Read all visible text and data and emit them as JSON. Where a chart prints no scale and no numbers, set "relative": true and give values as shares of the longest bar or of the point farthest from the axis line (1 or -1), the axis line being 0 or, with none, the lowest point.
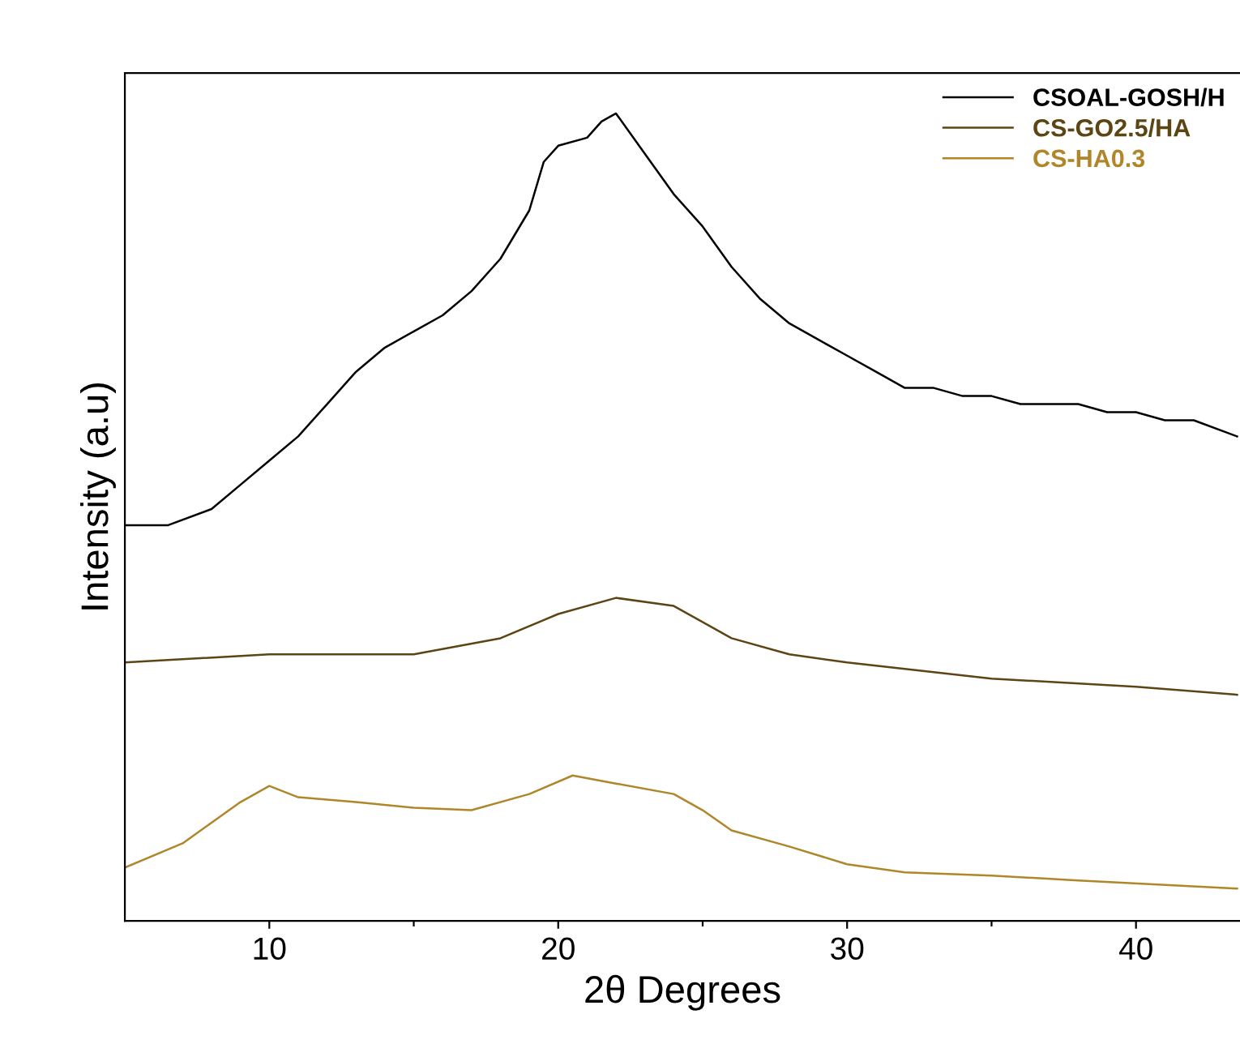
{
  "chart_data": {
    "type": "line",
    "relative": true,
    "xlabel": "2θ Degrees",
    "ylabel": "Intensity (a.u)",
    "xlim": [
      5,
      43.6
    ],
    "xticks": [
      {
        "value": 10,
        "label": "10"
      },
      {
        "value": 15,
        "label": null
      },
      {
        "value": 20,
        "label": "20"
      },
      {
        "value": 25,
        "label": null
      },
      {
        "value": 30,
        "label": "30"
      },
      {
        "value": 35,
        "label": null
      },
      {
        "value": 40,
        "label": "40"
      }
    ],
    "legend": "top right",
    "grid": false,
    "marker": "none",
    "line_style": "solid",
    "series": [
      {
        "name": "CSOAL-GOSH/H",
        "color": "#000000",
        "x": [
          5,
          6.5,
          8,
          9,
          10,
          11,
          12,
          13,
          14,
          15,
          16,
          17,
          18,
          19,
          19.5,
          20,
          21,
          21.5,
          22,
          23,
          24,
          25,
          26,
          27,
          28,
          29,
          30,
          31,
          32,
          33,
          34,
          35,
          36,
          37,
          38,
          39,
          40,
          41,
          42,
          43.5
        ],
        "values": [
          0.49,
          0.49,
          0.51,
          0.54,
          0.57,
          0.6,
          0.64,
          0.68,
          0.71,
          0.73,
          0.75,
          0.78,
          0.82,
          0.88,
          0.94,
          0.96,
          0.97,
          0.99,
          1.0,
          0.95,
          0.9,
          0.86,
          0.81,
          0.77,
          0.74,
          0.72,
          0.7,
          0.68,
          0.66,
          0.66,
          0.65,
          0.65,
          0.64,
          0.64,
          0.64,
          0.63,
          0.63,
          0.62,
          0.62,
          0.6
        ]
      },
      {
        "name": "CS-GO2.5/HA",
        "color": "#5c4413",
        "x": [
          5,
          10,
          15,
          18,
          20,
          22,
          24,
          26,
          28,
          30,
          35,
          40,
          43.5
        ],
        "values": [
          0.32,
          0.33,
          0.33,
          0.35,
          0.38,
          0.4,
          0.39,
          0.35,
          0.33,
          0.32,
          0.3,
          0.29,
          0.28
        ]
      },
      {
        "name": "CS-HA0.3",
        "color": "#b0862a",
        "x": [
          5,
          7,
          9,
          10,
          11,
          13,
          15,
          17,
          19,
          20.5,
          22,
          24,
          25,
          26,
          28,
          30,
          32,
          35,
          38,
          43.5
        ],
        "values": [
          0.066,
          0.096,
          0.147,
          0.167,
          0.153,
          0.147,
          0.14,
          0.137,
          0.157,
          0.18,
          0.17,
          0.157,
          0.137,
          0.112,
          0.092,
          0.07,
          0.06,
          0.056,
          0.05,
          0.04
        ]
      }
    ]
  }
}
